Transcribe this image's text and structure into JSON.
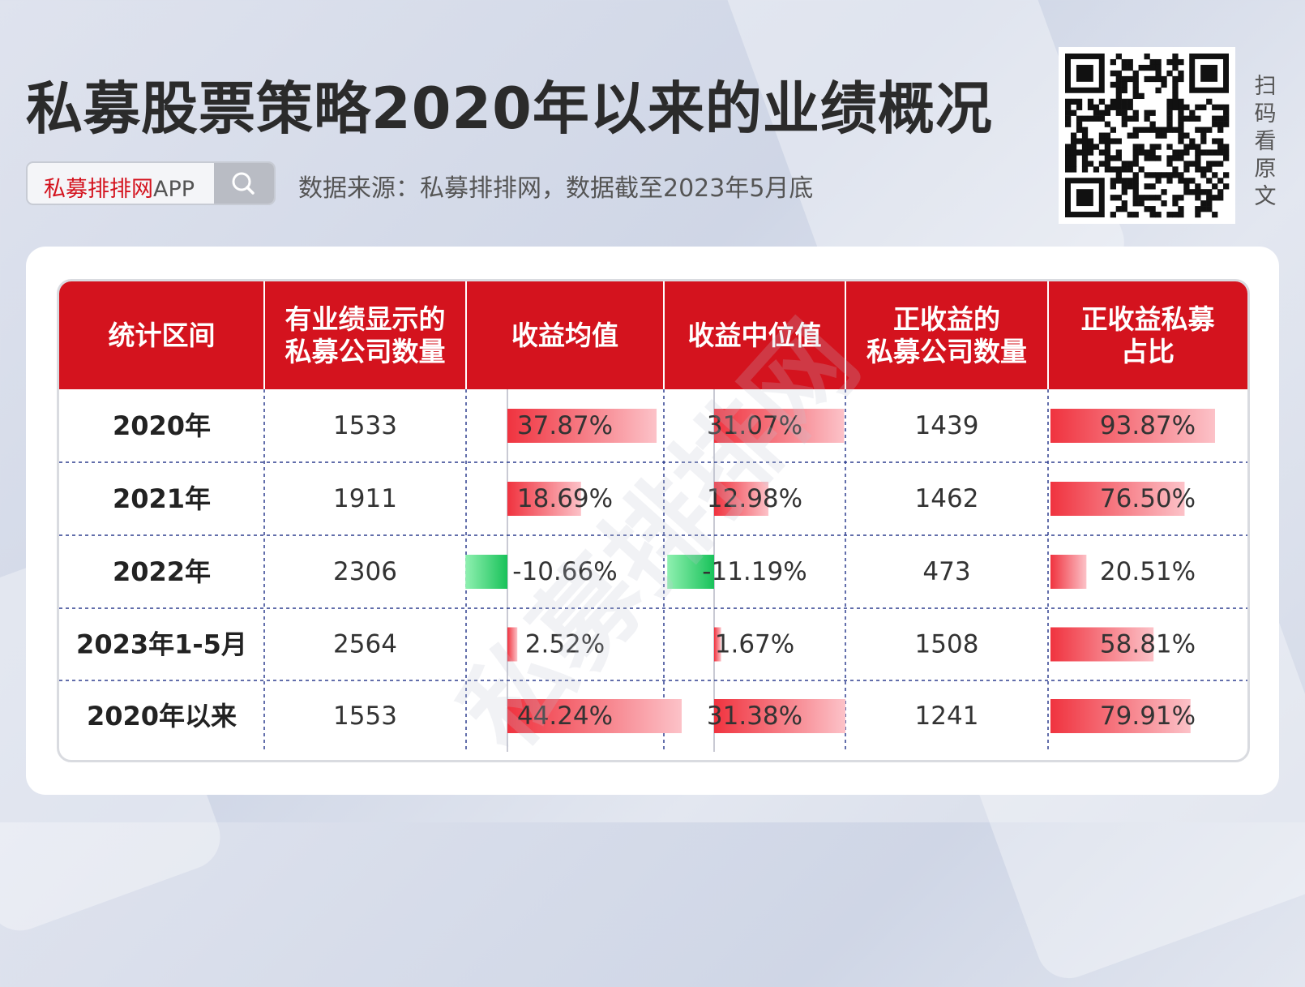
{
  "title": "私募股票策略2020年以来的业绩概况",
  "search": {
    "brand": "私募排排网",
    "suffix": "APP"
  },
  "source_note": "数据来源：私募排排网，数据截至2023年5月底",
  "qr_caption": [
    "扫",
    "码",
    "看",
    "原",
    "文"
  ],
  "watermark": "私募排排网",
  "colors": {
    "header_bg": "#d4131e",
    "positive_bar": "#f03a45",
    "negative_bar": "#22c55e"
  },
  "chart_data": {
    "type": "table",
    "columns": [
      "统计区间",
      "有业绩显示的\n私募公司数量",
      "收益均值",
      "收益中位值",
      "正收益的\n私募公司数量",
      "正收益私募\n占比"
    ],
    "rows": [
      {
        "period": "2020年",
        "count": "1533",
        "mean": "37.87%",
        "median": "31.07%",
        "pos_count": "1439",
        "pos_ratio": "93.87%",
        "mean_v": 37.87,
        "median_v": 31.07,
        "ratio_v": 93.87
      },
      {
        "period": "2021年",
        "count": "1911",
        "mean": "18.69%",
        "median": "12.98%",
        "pos_count": "1462",
        "pos_ratio": "76.50%",
        "mean_v": 18.69,
        "median_v": 12.98,
        "ratio_v": 76.5
      },
      {
        "period": "2022年",
        "count": "2306",
        "mean": "-10.66%",
        "median": "-11.19%",
        "pos_count": "473",
        "pos_ratio": "20.51%",
        "mean_v": -10.66,
        "median_v": -11.19,
        "ratio_v": 20.51
      },
      {
        "period": "2023年1-5月",
        "count": "2564",
        "mean": "2.52%",
        "median": "1.67%",
        "pos_count": "1508",
        "pos_ratio": "58.81%",
        "mean_v": 2.52,
        "median_v": 1.67,
        "ratio_v": 58.81
      },
      {
        "period": "2020年以来",
        "count": "1553",
        "mean": "44.24%",
        "median": "31.38%",
        "pos_count": "1241",
        "pos_ratio": "79.91%",
        "mean_v": 44.24,
        "median_v": 31.38,
        "ratio_v": 79.91
      }
    ]
  }
}
